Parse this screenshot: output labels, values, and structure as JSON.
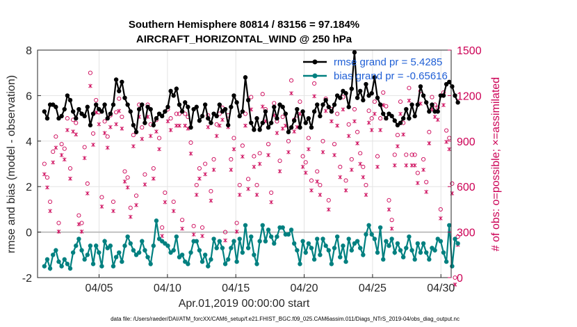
{
  "chart_data": {
    "type": "line",
    "title": "Southern Hemisphere 80814 / 83156 = 97.184%",
    "subtitle": "AIRCRAFT_HORIZONTAL_WIND @ 250 hPa",
    "xlabel": "Apr.01,2019 00:00:00 start",
    "ylabel": "rmse and bias (model - observation)",
    "ylabel_right": "# of obs: o=possible; ×=assimilated",
    "footer": "data file: /Users/raeder/DAI/ATM_forcXX/CAM6_setup/f.e21.FHIST_BGC.f09_025.CAM6assim.011/Diags_NTrS_2019-04/obs_diag_output.nc",
    "xlim": [
      0.5,
      30.75
    ],
    "ylim": [
      -2,
      8
    ],
    "ylim_right": [
      0,
      1500
    ],
    "x_ticks": [
      5,
      10,
      15,
      20,
      25,
      30
    ],
    "x_tick_labels": [
      "04/05",
      "04/10",
      "04/15",
      "04/20",
      "04/25",
      "04/30"
    ],
    "y_ticks": [
      -2,
      0,
      2,
      4,
      6,
      8
    ],
    "y_tick_labels": [
      "-2",
      "0",
      "2",
      "4",
      "6",
      "8"
    ],
    "y_ticks_right": [
      0,
      300,
      600,
      900,
      1200,
      1500
    ],
    "y_tick_labels_right": [
      "0",
      "300",
      "600",
      "900",
      "1200",
      "1500"
    ],
    "colors": {
      "rmse": "#000000",
      "bias": "#008080",
      "obs": "#cc0055",
      "legend_text": "#1f5fd6",
      "zero_line": "#b0b0b0"
    },
    "series": [
      {
        "name": "rmse grand pr = 5.4285",
        "legend": "rmse grand pr = 5.4285",
        "color": "#000000",
        "values": [
          5.3,
          5.0,
          5.6,
          5.6,
          5.5,
          5.0,
          5.1,
          5.4,
          6.0,
          5.8,
          5.3,
          5.0,
          5.4,
          5.2,
          5.1,
          5.5,
          4.7,
          5.2,
          5.6,
          5.4,
          5.3,
          5.6,
          5.0,
          5.2,
          5.6,
          6.7,
          6.2,
          6.6,
          5.9,
          5.6,
          5.3,
          4.7,
          4.4,
          5.4,
          5.6,
          4.8,
          5.5,
          5.4,
          4.7,
          5.0,
          5.2,
          5.1,
          5.3,
          5.5,
          6.2,
          6.0,
          6.3,
          5.6,
          5.3,
          5.7,
          5.5,
          4.6,
          5.4,
          5.5,
          4.9,
          5.1,
          5.6,
          5.0,
          4.8,
          5.2,
          5.1,
          5.6,
          5.3,
          5.4,
          4.7,
          5.5,
          6.0,
          5.7,
          5.1,
          5.3,
          6.8,
          5.8,
          4.8,
          4.5,
          5.0,
          4.5,
          4.8,
          5.3,
          4.6,
          4.8,
          5.5,
          5.0,
          5.6,
          5.5,
          5.2,
          4.4,
          4.6,
          4.9,
          5.4,
          4.6,
          5.3,
          4.8,
          5.0,
          4.6,
          5.3,
          5.6,
          5.1,
          5.6,
          5.8,
          5.5,
          5.3,
          5.6,
          6.0,
          5.9,
          6.2,
          6.1,
          5.5,
          6.3,
          7.9,
          5.9,
          6.2,
          5.8,
          6.5,
          6.0,
          6.1,
          6.8,
          5.9,
          5.6,
          5.2,
          5.0,
          5.2,
          5.1,
          4.9,
          4.7,
          4.8,
          5.0,
          5.4,
          5.0,
          5.6,
          5.1,
          5.6,
          6.4,
          6.0,
          5.7,
          5.3,
          5.6,
          5.3,
          5.3,
          6.0,
          6.0,
          6.5,
          6.6,
          6.4,
          6.0,
          5.7
        ]
      },
      {
        "name": "bias grand pr = -0.65616",
        "legend": "bias grand pr = -0.65616",
        "color": "#008080",
        "values": [
          -1.5,
          -1.2,
          -1.6,
          -1.0,
          -0.8,
          -1.3,
          -1.5,
          -1.2,
          -1.4,
          -1.6,
          -0.9,
          -0.6,
          -0.3,
          -0.8,
          -1.2,
          -1.0,
          -0.6,
          -1.4,
          -0.6,
          -0.9,
          -1.5,
          -0.4,
          -0.7,
          -0.6,
          -1.5,
          -1.1,
          -0.9,
          -1.3,
          -0.6,
          -0.2,
          -0.5,
          -0.8,
          -1.0,
          -0.9,
          -0.4,
          -0.8,
          -1.1,
          -1.4,
          -0.6,
          0.5,
          -0.3,
          -0.4,
          -0.5,
          -0.6,
          -0.9,
          -0.8,
          -0.2,
          -1.1,
          -1.0,
          -1.3,
          -1.4,
          -0.9,
          -0.4,
          -0.4,
          -0.8,
          -1.3,
          -1.0,
          -1.5,
          -1.2,
          -0.3,
          -0.7,
          -0.4,
          -0.7,
          -1.4,
          -1.2,
          -0.7,
          -0.4,
          -1.3,
          -0.3,
          -0.9,
          0.3,
          -0.7,
          -0.2,
          -1.0,
          -1.4,
          -0.4,
          0.3,
          -0.4,
          0.1,
          -0.2,
          -0.5,
          -0.2,
          0.2,
          0.2,
          -0.1,
          -0.1,
          0.1,
          -0.5,
          -0.8,
          -1.4,
          -0.4,
          -0.9,
          -0.5,
          -0.7,
          -1.2,
          -0.3,
          -1.0,
          -0.3,
          -0.6,
          -0.8,
          -1.4,
          -0.7,
          -0.2,
          -1.1,
          -0.6,
          -1.3,
          -0.3,
          -0.8,
          -0.5,
          -0.4,
          -0.7,
          -1.0,
          -0.1,
          0.3,
          -0.1,
          -0.3,
          -0.9,
          0.2,
          -1.2,
          -0.4,
          -0.6,
          -0.3,
          -0.9,
          -0.5,
          -0.8,
          -1.1,
          -0.7,
          -0.2,
          -0.8,
          -1.2,
          -0.5,
          -0.9,
          -0.5,
          -0.9,
          -1.2,
          -0.7,
          -0.8,
          -0.3,
          -0.4,
          -0.9,
          -1.3,
          0.3,
          -1.5,
          -0.3,
          -0.5
        ]
      }
    ],
    "obs_possible": [
      750,
      660,
      500,
      830,
      930,
      360,
      880,
      850,
      1050,
      720,
      1040,
      1020,
      410,
      360,
      860,
      620,
      1350,
      950,
      1170,
      1090,
      530,
      1030,
      930,
      1070,
      500,
      1090,
      1180,
      1060,
      700,
      660,
      460,
      940,
      540,
      1140,
      990,
      680,
      1140,
      1010,
      720,
      1040,
      920,
      330,
      560,
      1110,
      1050,
      500,
      1080,
      1080,
      380,
      1080,
      1060,
      890,
      340,
      610,
      720,
      330,
      750,
      1070,
      570,
      780,
      1010,
      1080,
      1120,
      300,
      1070,
      780,
      920,
      360,
      610,
      870,
      1080,
      650,
      1190,
      800,
      610,
      820,
      1210,
      1110,
      880,
      560,
      1150,
      1030,
      770,
      1060,
      1080,
      900,
      1300,
      1040,
      1070,
      1160,
      800,
      760,
      920,
      640,
      1280,
      700,
      610,
      900,
      1180,
      510,
      1110,
      880,
      1080,
      730,
      1190,
      640,
      1010,
      780,
      1110,
      960,
      820,
      730,
      610,
      1100,
      1050,
      1160,
      800,
      1050,
      1220,
      1130,
      510,
      380,
      810,
      940,
      1160,
      1020,
      810,
      1250,
      810,
      810,
      690,
      1230,
      780,
      630,
      960,
      1190,
      1140,
      1120,
      450,
      1220,
      970,
      920,
      620,
      0,
      270
    ]
  }
}
